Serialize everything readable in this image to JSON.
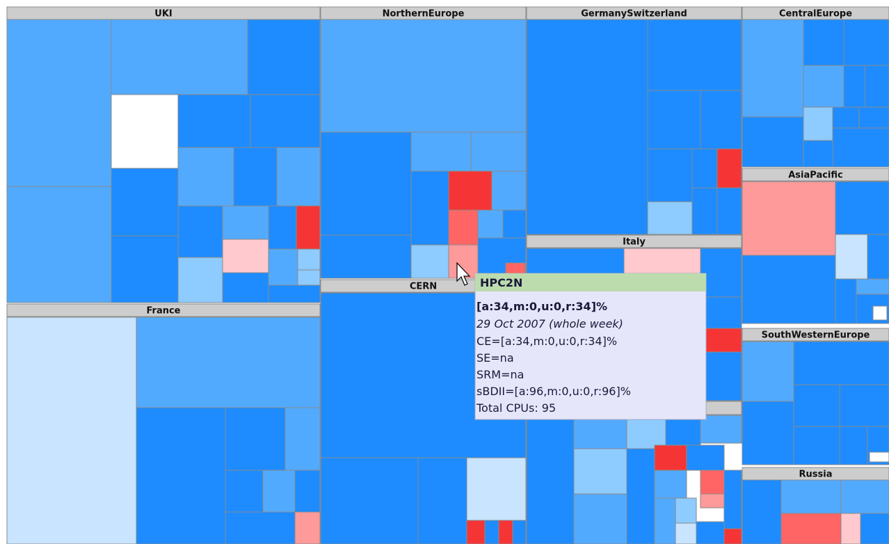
{
  "regions": [
    {
      "label": "UKI"
    },
    {
      "label": "NorthernEurope"
    },
    {
      "label": "GermanySwitzerland"
    },
    {
      "label": "CentralEurope"
    },
    {
      "label": "AsiaPacific"
    },
    {
      "label": "Italy"
    },
    {
      "label": "CERN"
    },
    {
      "label": "France"
    },
    {
      "label": "SouthWesternEurope"
    },
    {
      "label": "Russia"
    }
  ],
  "tooltip": {
    "title": "HPC2N",
    "summary": "[a:34,m:0,u:0,r:34]%",
    "date": "29 Oct 2007 (whole week)",
    "lines": [
      "CE=[a:34,m:0,u:0,r:34]%",
      "SE=na",
      "SRM=na",
      "sBDII=[a:96,m:0,u:0,r:96]%",
      "Total CPUs: 95"
    ]
  }
}
